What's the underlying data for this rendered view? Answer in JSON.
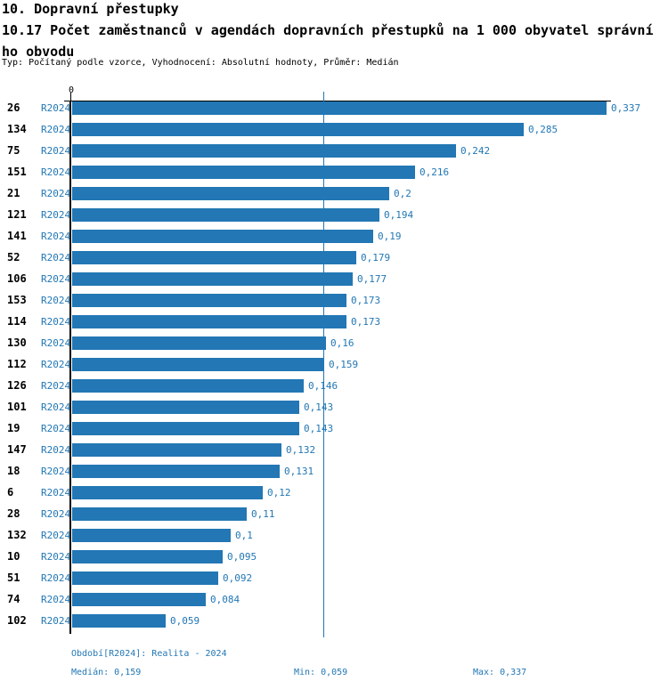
{
  "header": {
    "title_line1": "10. Dopravní přestupky",
    "title_line2": "10.17 Počet zaměstnanců v agendách dopravních přestupků na 1 000 obyvatel správní",
    "title_line3": "ho obvodu",
    "type_line": "Typ: Počítaný podle vzorce, Vyhodnocení: Absolutní hodnoty, Průměr: Medián"
  },
  "chart_data": {
    "type": "bar",
    "orientation": "horizontal",
    "title": "10.17 Počet zaměstnanců v agendách dopravních přestupků na 1 000 obyvatel správního obvodu",
    "series_label": "R2024",
    "categories": [
      "26",
      "134",
      "75",
      "151",
      "21",
      "121",
      "141",
      "52",
      "106",
      "153",
      "114",
      "130",
      "112",
      "126",
      "101",
      "19",
      "147",
      "18",
      "6",
      "28",
      "132",
      "10",
      "51",
      "74",
      "102"
    ],
    "values": [
      0.337,
      0.285,
      0.242,
      0.216,
      0.2,
      0.194,
      0.19,
      0.179,
      0.177,
      0.173,
      0.173,
      0.16,
      0.159,
      0.146,
      0.143,
      0.143,
      0.132,
      0.131,
      0.12,
      0.11,
      0.1,
      0.095,
      0.092,
      0.084,
      0.059
    ],
    "value_labels": [
      "0,337",
      "0,285",
      "0,242",
      "0,216",
      "0,2",
      "0,194",
      "0,19",
      "0,179",
      "0,177",
      "0,173",
      "0,173",
      "0,16",
      "0,159",
      "0,146",
      "0,143",
      "0,143",
      "0,132",
      "0,131",
      "0,12",
      "0,11",
      "0,1",
      "0,095",
      "0,092",
      "0,084",
      "0,059"
    ],
    "xlim": [
      0,
      0.337
    ],
    "axis_zero_label": "0",
    "median_value": 0.159,
    "grid": false,
    "legend": "none",
    "bar_color": "#2277B4",
    "text_color": "#000000"
  },
  "footer": {
    "period": "Období[R2024]: Realita - 2024",
    "median": "Medián: 0,159",
    "min": "Min: 0,059",
    "max": "Max: 0,337"
  }
}
